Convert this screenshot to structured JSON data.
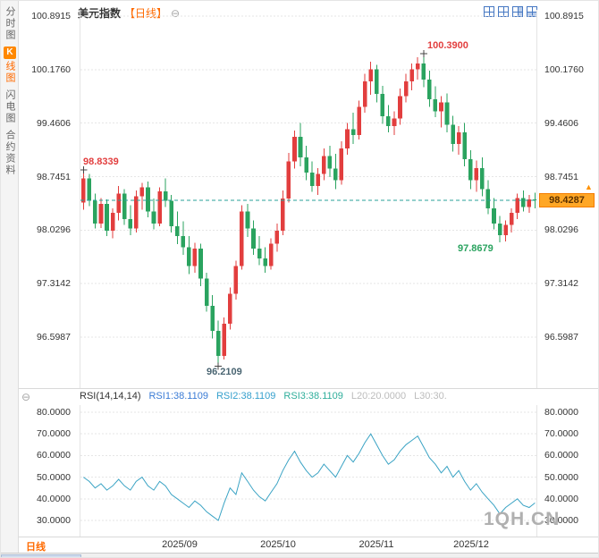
{
  "sidebar": {
    "items": [
      {
        "label": "分时图"
      },
      {
        "badge": "K",
        "label": "线图"
      },
      {
        "label": "闪电图"
      },
      {
        "label": "合约资料"
      }
    ]
  },
  "header": {
    "title": "美元指数",
    "period": "【日线】",
    "collapse_glyph": "⊖",
    "layout_icons": [
      "grid-2x2-icon",
      "grid-3x2-icon",
      "grid-split-right-icon",
      "grid-split-bottom-icon"
    ]
  },
  "price_tag": {
    "value": "98.4287",
    "arrow_glyph": "▲"
  },
  "annotations": {
    "first_high": "98.8339",
    "peak_high": "100.3900",
    "bottom_low": "96.2109",
    "recent_low": "97.8679"
  },
  "rsi_header": {
    "icon_glyph": "⊖",
    "name": "RSI(14,14,14)",
    "rsi1": "RSI1:38.1109",
    "rsi2": "RSI2:38.1109",
    "rsi3": "RSI3:38.1109",
    "l20": "L20:20.0000",
    "l30": "L30:30."
  },
  "bottom": {
    "period": "日线",
    "x_labels": [
      "2025/09",
      "2025/10",
      "2025/11",
      "2025/12"
    ]
  },
  "watermark": "1QH.CN",
  "colors": {
    "up": "#e23e3e",
    "down": "#2aa35f",
    "dash": "#2aa198",
    "rsi_line": "#3aa3c4",
    "grid": "#e6e6e6",
    "marker": "#444444"
  },
  "chart_data": [
    {
      "type": "candlestick",
      "title": "美元指数 日线",
      "y_ticks": [
        "100.8915",
        "100.1760",
        "99.4606",
        "98.7451",
        "98.0296",
        "97.3142",
        "96.5987"
      ],
      "x_labels": [
        "2025/09",
        "2025/10",
        "2025/11",
        "2025/12"
      ],
      "ylim": [
        95.92,
        100.97
      ],
      "current_price": 98.4287,
      "legend_position": "none",
      "grid": true,
      "ohlc": [
        [
          98.4,
          98.8339,
          98.3,
          98.72
        ],
        [
          98.72,
          98.78,
          98.35,
          98.42
        ],
        [
          98.42,
          98.52,
          98.05,
          98.12
        ],
        [
          98.12,
          98.46,
          98.06,
          98.38
        ],
        [
          98.38,
          98.44,
          97.95,
          98.02
        ],
        [
          98.02,
          98.32,
          97.92,
          98.26
        ],
        [
          98.26,
          98.62,
          98.16,
          98.52
        ],
        [
          98.52,
          98.58,
          98.1,
          98.18
        ],
        [
          98.18,
          98.36,
          97.96,
          98.05
        ],
        [
          98.05,
          98.56,
          98.0,
          98.48
        ],
        [
          98.48,
          98.66,
          98.3,
          98.6
        ],
        [
          98.6,
          98.68,
          98.2,
          98.28
        ],
        [
          98.28,
          98.45,
          98.04,
          98.12
        ],
        [
          98.12,
          98.6,
          98.08,
          98.55
        ],
        [
          98.55,
          98.72,
          98.34,
          98.42
        ],
        [
          98.42,
          98.5,
          98.0,
          98.08
        ],
        [
          98.08,
          98.28,
          97.84,
          97.95
        ],
        [
          97.95,
          98.15,
          97.7,
          97.8
        ],
        [
          97.8,
          97.95,
          97.44,
          97.55
        ],
        [
          97.55,
          97.86,
          97.46,
          97.78
        ],
        [
          97.78,
          97.85,
          97.28,
          97.38
        ],
        [
          97.38,
          97.46,
          96.94,
          97.02
        ],
        [
          97.02,
          97.16,
          96.58,
          96.68
        ],
        [
          96.68,
          96.82,
          96.2109,
          96.35
        ],
        [
          96.35,
          96.86,
          96.3,
          96.78
        ],
        [
          96.78,
          97.26,
          96.7,
          97.18
        ],
        [
          97.18,
          97.62,
          97.1,
          97.55
        ],
        [
          97.55,
          98.36,
          97.5,
          98.28
        ],
        [
          98.28,
          98.38,
          97.94,
          98.05
        ],
        [
          98.05,
          98.16,
          97.7,
          97.78
        ],
        [
          97.78,
          97.95,
          97.56,
          97.65
        ],
        [
          97.65,
          97.8,
          97.46,
          97.55
        ],
        [
          97.55,
          97.92,
          97.5,
          97.85
        ],
        [
          97.85,
          98.12,
          97.74,
          98.02
        ],
        [
          98.02,
          98.56,
          97.96,
          98.45
        ],
        [
          98.45,
          99.06,
          98.4,
          98.95
        ],
        [
          98.95,
          99.36,
          98.85,
          99.28
        ],
        [
          99.28,
          99.46,
          98.88,
          99.0
        ],
        [
          99.0,
          99.16,
          98.7,
          98.8
        ],
        [
          98.8,
          98.95,
          98.54,
          98.62
        ],
        [
          98.62,
          98.86,
          98.5,
          98.78
        ],
        [
          98.78,
          99.12,
          98.7,
          99.02
        ],
        [
          99.02,
          99.16,
          98.74,
          98.85
        ],
        [
          98.85,
          99.05,
          98.58,
          98.7
        ],
        [
          98.7,
          99.22,
          98.64,
          99.12
        ],
        [
          99.12,
          99.46,
          99.04,
          99.38
        ],
        [
          99.38,
          99.6,
          99.18,
          99.3
        ],
        [
          99.3,
          99.76,
          99.24,
          99.68
        ],
        [
          99.68,
          100.12,
          99.6,
          100.02
        ],
        [
          100.02,
          100.28,
          99.84,
          100.18
        ],
        [
          100.18,
          100.24,
          99.74,
          99.85
        ],
        [
          99.85,
          99.96,
          99.45,
          99.55
        ],
        [
          99.55,
          99.7,
          99.34,
          99.42
        ],
        [
          99.42,
          99.62,
          99.3,
          99.52
        ],
        [
          99.52,
          99.92,
          99.44,
          99.82
        ],
        [
          99.82,
          100.12,
          99.74,
          100.02
        ],
        [
          100.02,
          100.26,
          99.9,
          100.18
        ],
        [
          100.18,
          100.34,
          100.04,
          100.26
        ],
        [
          100.26,
          100.39,
          99.94,
          100.04
        ],
        [
          100.04,
          100.16,
          99.68,
          99.78
        ],
        [
          99.78,
          99.95,
          99.54,
          99.62
        ],
        [
          99.62,
          99.82,
          99.4,
          99.74
        ],
        [
          99.74,
          99.86,
          99.34,
          99.44
        ],
        [
          99.44,
          99.56,
          99.08,
          99.18
        ],
        [
          99.18,
          99.42,
          99.04,
          99.34
        ],
        [
          99.34,
          99.46,
          98.88,
          98.98
        ],
        [
          98.98,
          99.1,
          98.58,
          98.7
        ],
        [
          98.7,
          98.96,
          98.54,
          98.86
        ],
        [
          98.86,
          99.0,
          98.48,
          98.58
        ],
        [
          98.58,
          98.7,
          98.24,
          98.32
        ],
        [
          98.32,
          98.46,
          98.04,
          98.12
        ],
        [
          98.12,
          98.22,
          97.8679,
          97.96
        ],
        [
          97.96,
          98.16,
          97.88,
          98.1
        ],
        [
          98.1,
          98.32,
          98.0,
          98.26
        ],
        [
          98.26,
          98.52,
          98.18,
          98.46
        ],
        [
          98.46,
          98.56,
          98.28,
          98.34
        ],
        [
          98.34,
          98.5,
          98.26,
          98.44
        ],
        [
          98.44,
          98.53,
          98.32,
          98.4287
        ]
      ],
      "markers": [
        {
          "index": 0,
          "price": 98.8339,
          "label": "98.8339"
        },
        {
          "index": 58,
          "price": 100.39,
          "label": "100.3900"
        },
        {
          "index": 23,
          "price": 96.2109,
          "label": "96.2109"
        }
      ]
    },
    {
      "type": "line",
      "title": "RSI(14,14,14)",
      "y_ticks": [
        "80.0000",
        "70.0000",
        "60.0000",
        "50.0000",
        "40.0000",
        "30.0000"
      ],
      "ylim": [
        25,
        85
      ],
      "grid": true,
      "series": [
        {
          "name": "RSI1",
          "values": [
            50,
            48,
            45,
            47,
            44,
            46,
            49,
            46,
            44,
            48,
            50,
            46,
            44,
            48,
            46,
            42,
            40,
            38,
            36,
            39,
            37,
            34,
            32,
            30,
            38,
            45,
            42,
            52,
            48,
            44,
            41,
            39,
            43,
            47,
            53,
            58,
            62,
            57,
            53,
            50,
            52,
            56,
            53,
            50,
            55,
            60,
            57,
            61,
            66,
            70,
            65,
            60,
            56,
            58,
            62,
            65,
            67,
            69,
            64,
            59,
            56,
            52,
            55,
            50,
            53,
            48,
            44,
            47,
            43,
            40,
            37,
            33,
            36,
            38,
            40,
            37,
            36,
            38.11
          ]
        }
      ]
    }
  ]
}
